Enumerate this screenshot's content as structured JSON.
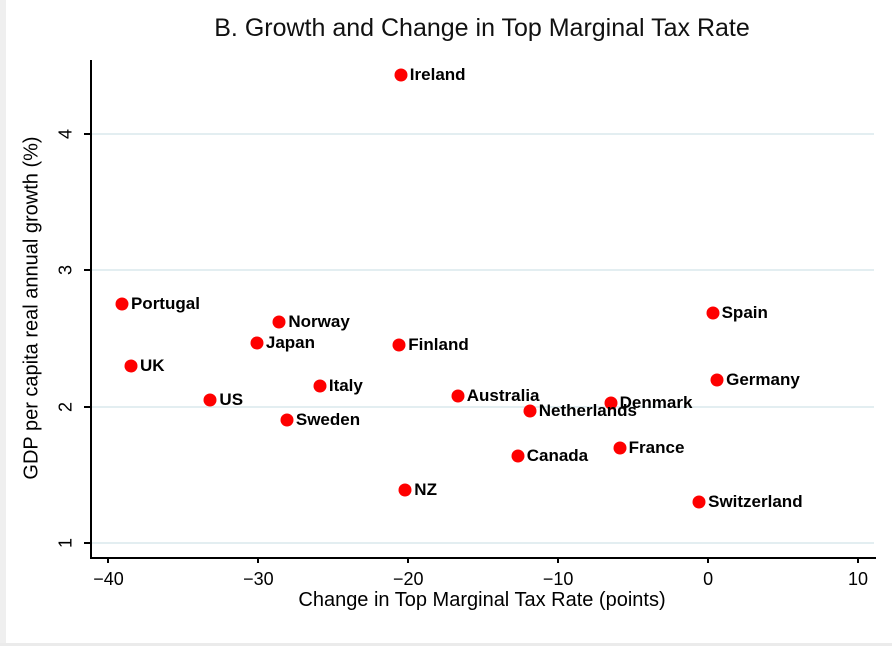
{
  "chart_data": {
    "type": "scatter",
    "title": "B. Growth and Change in Top Marginal Tax Rate",
    "xlabel": "Change in Top Marginal Tax Rate (points)",
    "ylabel": "GDP per capita real annual growth (%)",
    "xlim": [
      -41.1,
      11.2
    ],
    "ylim": [
      0.9,
      4.54
    ],
    "x_ticks": [
      -40,
      -30,
      -20,
      -10,
      0,
      10
    ],
    "y_ticks": [
      1,
      2,
      3,
      4
    ],
    "grid": "horizontal-gridlines-at-y-ticks",
    "grid_color": "#e3eef1",
    "axis_color": "#000000",
    "marker_color": "#fe0000",
    "legend": "none",
    "points": [
      {
        "label": "Ireland",
        "x": -20.5,
        "y": 4.43
      },
      {
        "label": "Portugal",
        "x": -39.1,
        "y": 2.75
      },
      {
        "label": "Spain",
        "x": 0.3,
        "y": 2.69
      },
      {
        "label": "Norway",
        "x": -28.6,
        "y": 2.62
      },
      {
        "label": "Japan",
        "x": -30.1,
        "y": 2.47
      },
      {
        "label": "Finland",
        "x": -20.6,
        "y": 2.45
      },
      {
        "label": "UK",
        "x": -38.5,
        "y": 2.3
      },
      {
        "label": "Germany",
        "x": 0.6,
        "y": 2.2
      },
      {
        "label": "Italy",
        "x": -25.9,
        "y": 2.15
      },
      {
        "label": "Australia",
        "x": -16.7,
        "y": 2.08
      },
      {
        "label": "US",
        "x": -33.2,
        "y": 2.05
      },
      {
        "label": "Denmark",
        "x": -6.5,
        "y": 2.03
      },
      {
        "label": "Netherlands",
        "x": -11.9,
        "y": 1.97
      },
      {
        "label": "Sweden",
        "x": -28.1,
        "y": 1.9
      },
      {
        "label": "France",
        "x": -5.9,
        "y": 1.7
      },
      {
        "label": "Canada",
        "x": -12.7,
        "y": 1.64
      },
      {
        "label": "NZ",
        "x": -20.2,
        "y": 1.39
      },
      {
        "label": "Switzerland",
        "x": -0.6,
        "y": 1.3
      }
    ]
  }
}
